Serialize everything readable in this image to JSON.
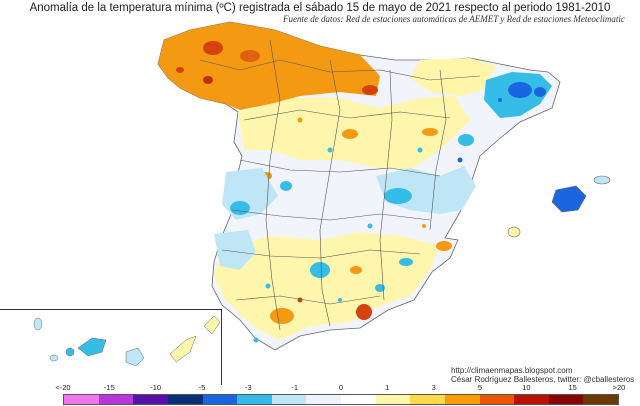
{
  "title": "Anomalía de la temperatura mínima (ºC) registrada el sábado 15 de mayo de 2021 respecto al periodo 1981-2010",
  "source": "Fuente de datos: Red de estaciones automáticas de AEMET y Red de estaciones Meteoclimatic",
  "credits": {
    "website": "http://climaenmapas.blogspot.com",
    "author": "César Rodríguez Ballesteros, twitter: @cballesteros"
  },
  "legend": {
    "labels": [
      "<-20",
      "-15",
      "-10",
      "-5",
      "-3",
      "-1",
      "0",
      "1",
      "3",
      "5",
      "10",
      "15",
      ">20"
    ],
    "colors": [
      "#ee77ee",
      "#bb33dd",
      "#5511aa",
      "#0a2f7a",
      "#1a66e0",
      "#33bbee",
      "#bfe6f7",
      "#eef2fb",
      "#ffffff",
      "#fff6aa",
      "#ffd94a",
      "#ff9a00",
      "#ee5500",
      "#bb1100",
      "#8a0000",
      "#6a3a00"
    ]
  },
  "colors": {
    "land_neutral": "#f2f4fb",
    "warm_1_3": "#fff6aa",
    "warm_3_5": "#ffd94a",
    "warm_5_10": "#f39a12",
    "warm_10_15": "#d6410c",
    "cold_0_1": "#bfe6f7",
    "cold_1_3": "#35bde8",
    "cold_3_5": "#1a66e0",
    "borders": "#555555"
  }
}
